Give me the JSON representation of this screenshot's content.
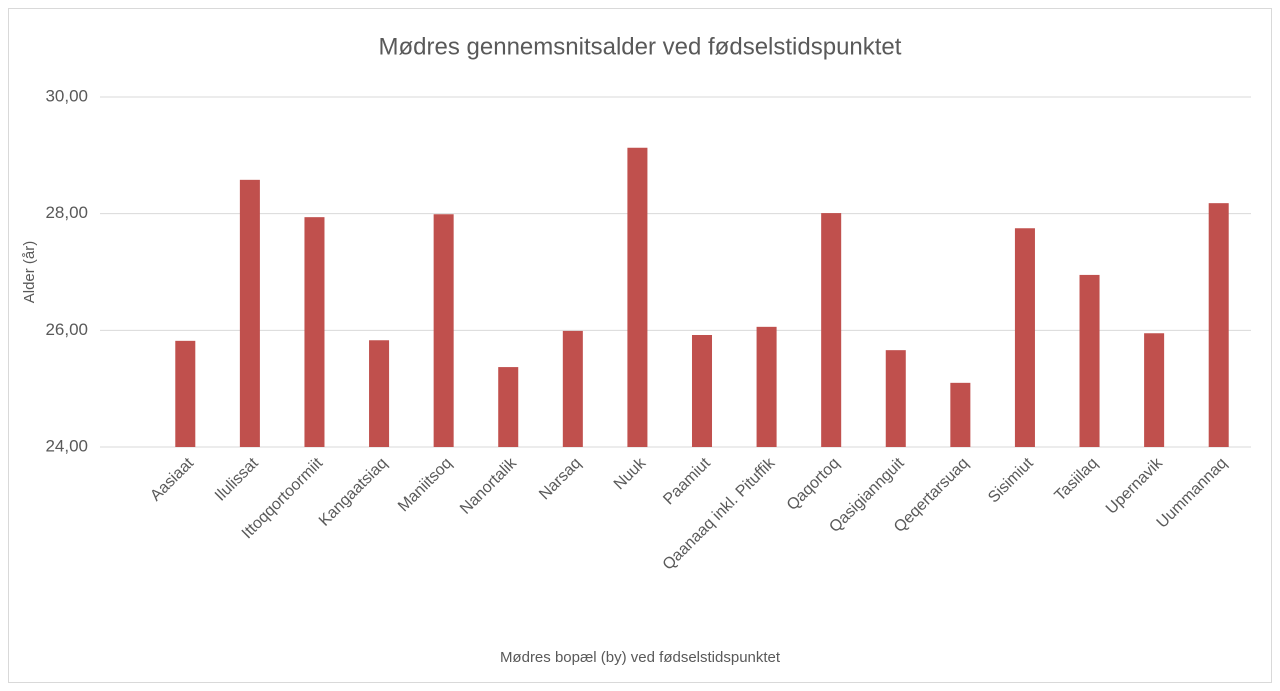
{
  "chart_data": {
    "type": "bar",
    "title": "Mødres gennemsnitsalder ved fødselstidspunktet",
    "x_label": "Mødres bopæl (by) ved fødselstidspunktet",
    "y_label": "Alder (år)",
    "categories": [
      "Aasiaat",
      "Ilulissat",
      "Ittoqqortoormiit",
      "Kangaatsiaq",
      "Maniitsoq",
      "Nanortalik",
      "Narsaq",
      "Nuuk",
      "Paamiut",
      "Qaanaaq inkl. Pituffik",
      "Qaqortoq",
      "Qasigiannguit",
      "Qeqertarsuaq",
      "Sisimiut",
      "Tasiilaq",
      "Upernavik",
      "Uummannaq"
    ],
    "values": [
      25.82,
      28.58,
      27.94,
      25.83,
      27.99,
      25.37,
      25.99,
      29.13,
      25.92,
      26.06,
      28.01,
      25.66,
      25.1,
      27.75,
      26.95,
      25.95,
      28.18
    ],
    "color": "#c0504d",
    "ylim": [
      24,
      30
    ],
    "yticks": [
      {
        "value": 24,
        "label": "24,00"
      },
      {
        "value": 26,
        "label": "26,00"
      },
      {
        "value": 28,
        "label": "28,00"
      },
      {
        "value": 30,
        "label": "30,00"
      }
    ],
    "grid": true
  }
}
